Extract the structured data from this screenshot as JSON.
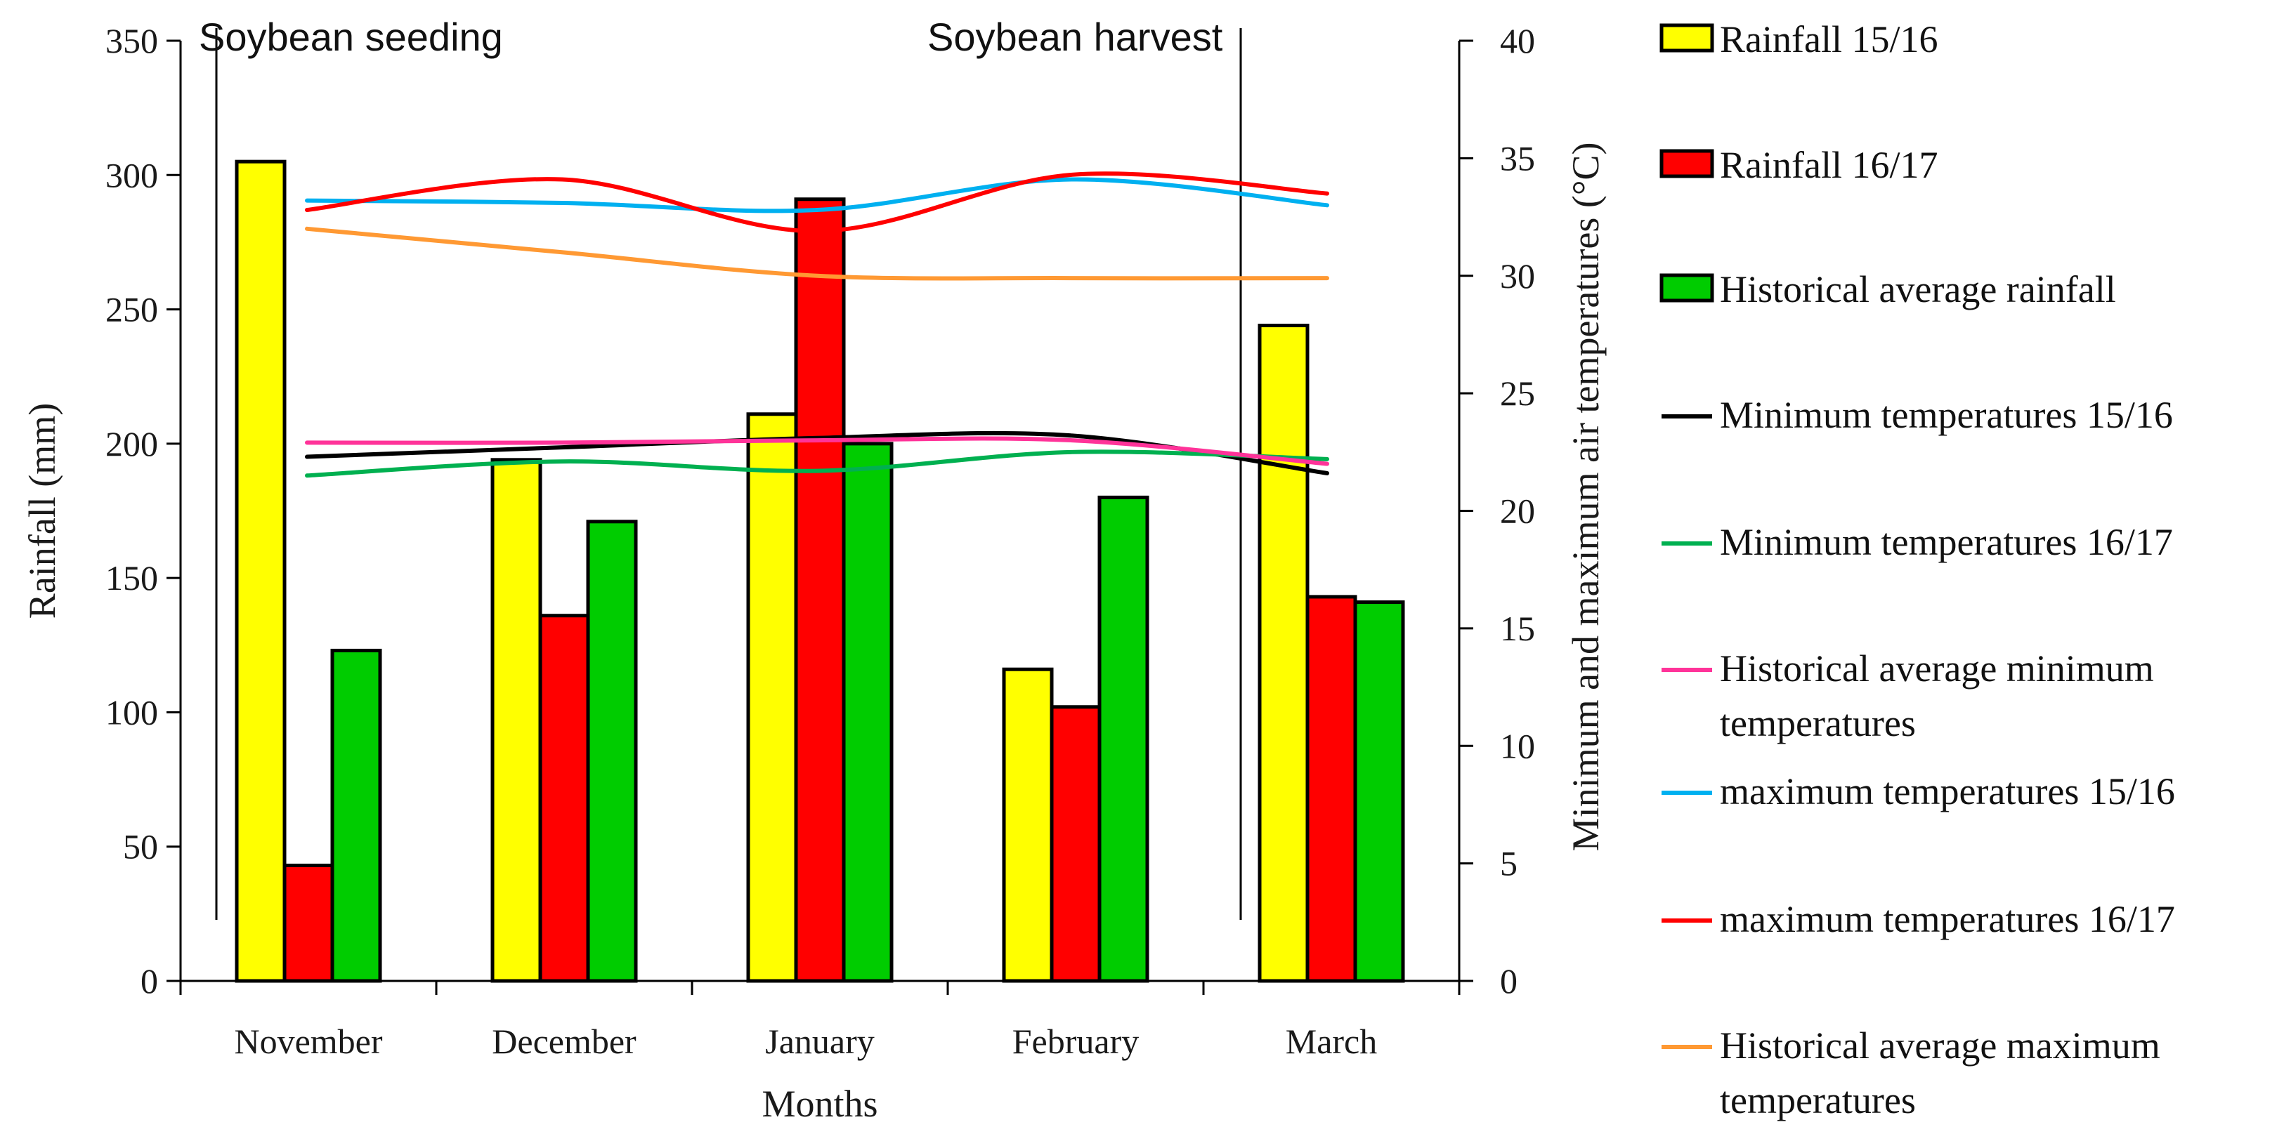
{
  "chart_data": {
    "type": "bar",
    "title": "",
    "xlabel": "Months",
    "ylabel": "Rainfall (mm)",
    "y2label": "Minimum and maximum air temperatures (°C)",
    "categories": [
      "November",
      "December",
      "January",
      "February",
      "March"
    ],
    "ylim": [
      0,
      350
    ],
    "yticks": [
      0,
      50,
      100,
      150,
      200,
      250,
      300,
      350
    ],
    "y2lim": [
      0,
      40
    ],
    "y2ticks": [
      0,
      5,
      10,
      15,
      20,
      25,
      30,
      35,
      40
    ],
    "grid": false,
    "legend_position": "right",
    "bar_series": [
      {
        "name": "Rainfall 15/16",
        "color": "#ffff00",
        "values": [
          305,
          194,
          211,
          116,
          244
        ]
      },
      {
        "name": "Rainfall 16/17",
        "color": "#ff0000",
        "values": [
          43,
          136,
          291,
          102,
          143
        ]
      },
      {
        "name": " Historical average rainfall",
        "color": "#00cc00",
        "values": [
          123,
          171,
          200,
          180,
          141
        ]
      }
    ],
    "line_series": [
      {
        "name": "Minimum temperatures 15/16",
        "color": "#000000",
        "axis": "y2",
        "values": [
          22.3,
          22.7,
          23.1,
          23.2,
          21.6
        ]
      },
      {
        "name": "Minimum temperatures 16/17",
        "color": "#00b050",
        "axis": "y2",
        "values": [
          21.5,
          22.1,
          21.7,
          22.5,
          22.2
        ]
      },
      {
        "name": "Historical average minimum temperatures",
        "color": "#ff3399",
        "axis": "y2",
        "values": [
          22.9,
          22.9,
          23.0,
          23.0,
          22.0
        ]
      },
      {
        "name": "maximum temperatures 15/16",
        "color": "#00b0f0",
        "axis": "y2",
        "values": [
          33.2,
          33.1,
          32.8,
          34.1,
          33.0
        ]
      },
      {
        "name": "maximum temperatures 16/17",
        "color": "#ff0000",
        "axis": "y2",
        "values": [
          32.8,
          34.1,
          31.9,
          34.3,
          33.5
        ]
      },
      {
        "name": "Historical average maximum temperatures",
        "color": "#ff9933",
        "axis": "y2",
        "values": [
          32.0,
          31.0,
          30.0,
          29.9,
          29.9
        ]
      }
    ],
    "annotations": [
      {
        "text": "Soybean seeding",
        "near": "November"
      },
      {
        "text": "Soybean harvest",
        "near": "February"
      }
    ],
    "legend": [
      {
        "label": "Rainfall 15/16",
        "kind": "box",
        "color": "#ffff00"
      },
      {
        "label": "Rainfall 16/17",
        "kind": "box",
        "color": "#ff0000"
      },
      {
        "label": " Historical average rainfall",
        "kind": "box",
        "color": "#00cc00"
      },
      {
        "label": "Minimum temperatures 15/16",
        "kind": "line",
        "color": "#000000"
      },
      {
        "label": "Minimum temperatures 16/17",
        "kind": "line",
        "color": "#00b050"
      },
      {
        "label": "Historical average minimum",
        "label2": "temperatures",
        "kind": "line",
        "color": "#ff3399"
      },
      {
        "label": "maximum temperatures 15/16",
        "kind": "line",
        "color": "#00b0f0"
      },
      {
        "label": "maximum temperatures 16/17",
        "kind": "line",
        "color": "#ff0000"
      },
      {
        "label": "Historical average maximum",
        "label2": "temperatures",
        "kind": "line",
        "color": "#ff9933"
      }
    ]
  }
}
